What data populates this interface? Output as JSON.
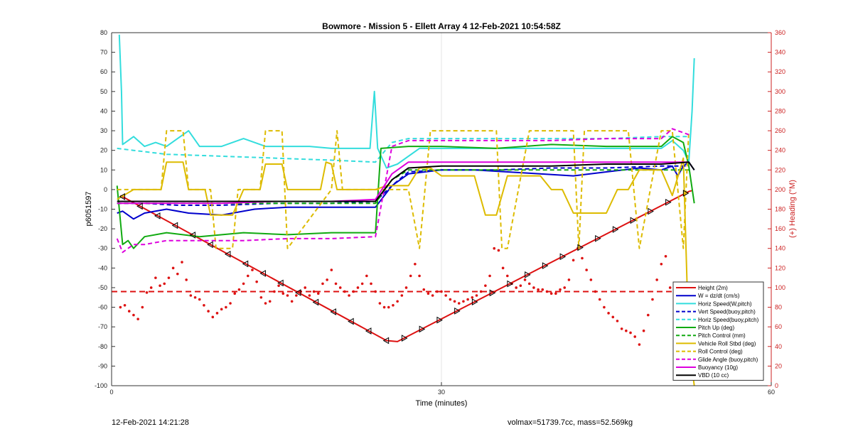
{
  "footer": {
    "timestamp": "12-Feb-2021 14:21:28",
    "stats": "volmax=51739.7cc, mass=52.569kg"
  },
  "colors": {
    "height": "#dd1111",
    "w": "#0000cc",
    "horiz": "#33dddd",
    "vert": "#0000cc",
    "horiz_buoy": "#33dddd",
    "pitch_up": "#11aa11",
    "pitch_control": "#11aa11",
    "roll": "#ddbb00",
    "roll_control": "#ddbb00",
    "glide": "#dd00dd",
    "buoyancy": "#dd00dd",
    "vbd": "#000000",
    "heading": "#dd1111"
  },
  "chart_data": {
    "type": "line",
    "title": "Bowmore - Mission 5 - Ellett Array 4 12-Feb-2021 10:54:58Z",
    "xlabel": "Time (minutes)",
    "ylabel": "p6051597",
    "y2label": "(+) Heading (°M)",
    "xlim": [
      0,
      60
    ],
    "ylim": [
      -100,
      80
    ],
    "y2lim": [
      0,
      360
    ],
    "x_ticks": [
      "0",
      "30",
      "60"
    ],
    "y_ticks": [
      "80",
      "70",
      "60",
      "50",
      "40",
      "30",
      "20",
      "10",
      "0",
      "-10",
      "-20",
      "-30",
      "-40",
      "-50",
      "-60",
      "-70",
      "-80",
      "-90",
      "-100"
    ],
    "y2_ticks": [
      "360",
      "340",
      "320",
      "300",
      "280",
      "260",
      "240",
      "220",
      "200",
      "180",
      "160",
      "140",
      "120",
      "100",
      "80",
      "60",
      "40",
      "20",
      "0"
    ],
    "grid": "x-only",
    "legend_position": "bottom-right",
    "series": [
      {
        "name": "Height (2m)",
        "style": "solid",
        "color_key": "height",
        "x": [
          0.8,
          25,
          26,
          52.5,
          52.8
        ],
        "y": [
          -3,
          -77,
          -77.5,
          -1,
          -0.5
        ]
      },
      {
        "name": "W = dz/dt (cm/s)",
        "style": "solid",
        "color_key": "w",
        "x": [
          0.5,
          1,
          2,
          3,
          5,
          7,
          10,
          13,
          16,
          20,
          23,
          24,
          25.5,
          27,
          30,
          33,
          36,
          39,
          42,
          45,
          48,
          50,
          51,
          51.5,
          52,
          52.5,
          53
        ],
        "y": [
          -12,
          -11,
          -15,
          -12,
          -10,
          -12,
          -13,
          -10,
          -9,
          -9,
          -9,
          -9,
          2,
          8,
          10,
          10,
          9,
          8,
          7,
          9,
          11,
          10,
          12,
          7,
          12,
          14,
          10
        ]
      },
      {
        "name": "Horiz Speed(W,pitch)",
        "style": "solid",
        "color_key": "horiz",
        "x": [
          0.7,
          0.9,
          1,
          1.5,
          2,
          3,
          4,
          5,
          6,
          7,
          8,
          10,
          12,
          14,
          16,
          18,
          20,
          22,
          23.5,
          23.9,
          24.2,
          25,
          26,
          28,
          30,
          33,
          36,
          39,
          42,
          45,
          48,
          50,
          51,
          52,
          52.5,
          52.8,
          53
        ],
        "y": [
          79,
          50,
          23,
          25,
          27,
          22,
          24,
          22,
          26,
          30,
          22,
          22,
          26,
          22,
          22,
          22,
          21,
          21,
          21,
          50,
          21,
          11,
          13,
          21,
          21,
          21,
          21,
          21,
          21,
          21,
          21,
          21,
          25,
          20,
          14,
          40,
          67
        ]
      },
      {
        "name": "Vert Speed(buoy,pitch)",
        "style": "dashed",
        "color_key": "vert",
        "x": [
          0.5,
          3,
          6,
          10,
          15,
          20,
          24,
          25.5,
          27,
          30,
          35,
          40,
          45,
          50,
          52.5
        ],
        "y": [
          -7,
          -7,
          -8,
          -8,
          -7,
          -7,
          -6,
          2,
          9,
          10,
          10,
          11,
          11,
          12,
          12
        ]
      },
      {
        "name": "Horiz Speed(buoy,pitch)",
        "style": "dashed",
        "color_key": "horiz_buoy",
        "x": [
          0.5,
          2,
          5,
          10,
          15,
          20,
          24,
          25.5,
          27,
          30,
          35,
          40,
          45,
          50,
          52.5
        ],
        "y": [
          21,
          20,
          18,
          17,
          16,
          15,
          14,
          24,
          26,
          26,
          26,
          26,
          26,
          27,
          27
        ]
      },
      {
        "name": "Pitch Up (deg)",
        "style": "solid",
        "color_key": "pitch_up",
        "x": [
          0.5,
          1,
          1.5,
          2,
          3,
          5,
          8,
          12,
          16,
          20,
          23.5,
          24,
          24.5,
          27,
          30,
          35,
          40,
          45,
          50,
          51,
          52,
          52.5,
          53
        ],
        "y": [
          2,
          -28,
          -26,
          -30,
          -24,
          -22,
          -24,
          -22,
          -23,
          -22,
          -22,
          -22,
          21,
          22,
          22,
          21,
          23,
          22,
          22,
          27,
          24,
          12,
          -7
        ]
      },
      {
        "name": "Pitch Control (mm)",
        "style": "dashed",
        "color_key": "pitch_control",
        "x": [
          0.5,
          5,
          10,
          15,
          20,
          24,
          25.5,
          27,
          30,
          35,
          40,
          45,
          50,
          52.5
        ],
        "y": [
          -7,
          -7,
          -7,
          -7,
          -7,
          -7,
          5,
          10,
          10,
          10,
          10,
          10,
          10,
          10
        ]
      },
      {
        "name": "Vehicle Roll Stbd (deg)",
        "style": "solid",
        "color_key": "roll",
        "x": [
          0.5,
          2,
          3,
          4.5,
          5,
          6.5,
          7,
          8.5,
          9,
          11,
          12,
          13.5,
          14,
          15.5,
          16,
          19,
          19.5,
          20,
          20.5,
          24,
          25,
          27,
          28,
          29,
          30,
          33,
          34,
          35,
          36,
          39,
          40,
          41,
          42,
          45,
          46,
          47,
          48,
          50,
          51,
          52,
          52.5,
          53
        ],
        "y": [
          -5,
          0,
          0,
          0,
          14,
          14,
          0,
          0,
          -13,
          -13,
          0,
          0,
          13,
          13,
          0,
          0,
          14,
          13,
          0,
          0,
          2,
          2,
          11,
          11,
          7,
          7,
          -13,
          -13,
          7,
          7,
          0,
          0,
          -12,
          -12,
          0,
          0,
          10,
          10,
          -3,
          16,
          -78,
          -100
        ]
      },
      {
        "name": "Roll Control (deg)",
        "style": "dashed",
        "color_key": "roll_control",
        "x": [
          0.5,
          3,
          4.5,
          5,
          6.5,
          7,
          9,
          9.5,
          11,
          11.5,
          13.5,
          14,
          15.5,
          16,
          20,
          20.5,
          21,
          24,
          25,
          27,
          28,
          29,
          30,
          35,
          35.5,
          36,
          38,
          42,
          42.5,
          43,
          45,
          46,
          47,
          48,
          50,
          51,
          52,
          52.5
        ],
        "y": [
          0,
          0,
          0,
          30,
          30,
          0,
          0,
          -30,
          -30,
          0,
          0,
          30,
          30,
          -30,
          0,
          30,
          0,
          0,
          0,
          0,
          -30,
          30,
          30,
          30,
          -30,
          -30,
          30,
          30,
          -30,
          30,
          30,
          30,
          30,
          -30,
          30,
          30,
          -30,
          30
        ]
      },
      {
        "name": "Glide Angle (buoy,pitch)",
        "style": "dashed",
        "color_key": "glide",
        "x": [
          0.5,
          1,
          2,
          3,
          5,
          8,
          12,
          16,
          20,
          24,
          25.5,
          27,
          30,
          35,
          40,
          45,
          50,
          51,
          52.5
        ],
        "y": [
          -25,
          -32,
          -28,
          -28,
          -26,
          -26,
          -26,
          -25,
          -25,
          -24,
          22,
          25,
          25,
          25,
          25,
          26,
          26,
          31,
          28
        ]
      },
      {
        "name": "Buoyancy (10g)",
        "style": "solid",
        "color_key": "buoyancy",
        "x": [
          0.5,
          5,
          10,
          15,
          20,
          24,
          25.5,
          27,
          30,
          35,
          40,
          45,
          50,
          52.5
        ],
        "y": [
          -7,
          -7,
          -7,
          -6,
          -6,
          -5,
          8,
          14,
          14,
          14,
          14,
          14,
          14,
          14
        ]
      },
      {
        "name": "VBD (10 cc)",
        "style": "solid",
        "color_key": "vbd",
        "x": [
          0.5,
          5,
          10,
          15,
          20,
          24,
          25.5,
          27,
          30,
          35,
          40,
          45,
          50,
          52.5,
          53
        ],
        "y": [
          -6,
          -6,
          -6,
          -6,
          -6,
          -6,
          5,
          11,
          12,
          12,
          12,
          13,
          13,
          14,
          10
        ]
      }
    ],
    "heading_series": {
      "axis": "right",
      "dashed_reference": 96,
      "x": [
        0.8,
        1.2,
        1.6,
        2.0,
        2.4,
        2.8,
        3.2,
        3.6,
        4.0,
        4.4,
        4.8,
        5.2,
        5.6,
        6.0,
        6.4,
        6.8,
        7.2,
        7.6,
        8.0,
        8.4,
        8.8,
        9.2,
        9.6,
        10.0,
        10.4,
        10.8,
        11.2,
        11.6,
        12.0,
        12.4,
        12.8,
        13.2,
        13.6,
        14.0,
        14.4,
        14.8,
        15.2,
        15.6,
        16.0,
        16.4,
        16.8,
        17.2,
        17.6,
        18.0,
        18.4,
        18.8,
        19.2,
        19.6,
        20.0,
        20.4,
        20.8,
        21.2,
        21.6,
        22.0,
        22.4,
        22.8,
        23.2,
        23.6,
        24.0,
        24.4,
        24.8,
        25.2,
        25.6,
        26.0,
        26.4,
        26.8,
        27.2,
        27.6,
        28.0,
        28.4,
        28.8,
        29.2,
        29.6,
        30.0,
        30.4,
        30.8,
        31.2,
        31.6,
        32.0,
        32.4,
        32.8,
        33.2,
        33.6,
        34.0,
        34.4,
        34.8,
        35.2,
        35.6,
        36.0,
        36.4,
        36.8,
        37.2,
        37.6,
        38.0,
        38.4,
        38.8,
        39.2,
        39.6,
        40.0,
        40.4,
        40.8,
        41.2,
        41.6,
        42.0,
        42.4,
        42.8,
        43.2,
        43.6,
        44.0,
        44.4,
        44.8,
        45.2,
        45.6,
        46.0,
        46.4,
        46.8,
        47.2,
        47.6,
        48.0,
        48.4,
        48.8,
        49.2,
        49.6,
        50.0,
        50.4,
        50.8,
        51.2
      ],
      "y": [
        80,
        82,
        76,
        72,
        68,
        80,
        95,
        100,
        110,
        102,
        104,
        110,
        120,
        114,
        126,
        108,
        92,
        90,
        88,
        82,
        76,
        70,
        74,
        78,
        80,
        84,
        94,
        98,
        104,
        112,
        118,
        106,
        90,
        84,
        86,
        96,
        102,
        94,
        92,
        86,
        92,
        96,
        100,
        92,
        96,
        94,
        104,
        108,
        118,
        104,
        100,
        96,
        92,
        96,
        100,
        104,
        112,
        104,
        96,
        84,
        80,
        80,
        82,
        86,
        92,
        100,
        112,
        124,
        112,
        98,
        94,
        92,
        96,
        96,
        92,
        88,
        86,
        84,
        86,
        88,
        90,
        92,
        96,
        102,
        112,
        140,
        138,
        120,
        112,
        104,
        100,
        102,
        108,
        104,
        100,
        98,
        98,
        96,
        94,
        94,
        98,
        100,
        108,
        128,
        140,
        130,
        118,
        108,
        96,
        88,
        80,
        74,
        70,
        66,
        58,
        56,
        54,
        50,
        42,
        56,
        72,
        88,
        108,
        124,
        132,
        100,
        94
      ]
    }
  }
}
